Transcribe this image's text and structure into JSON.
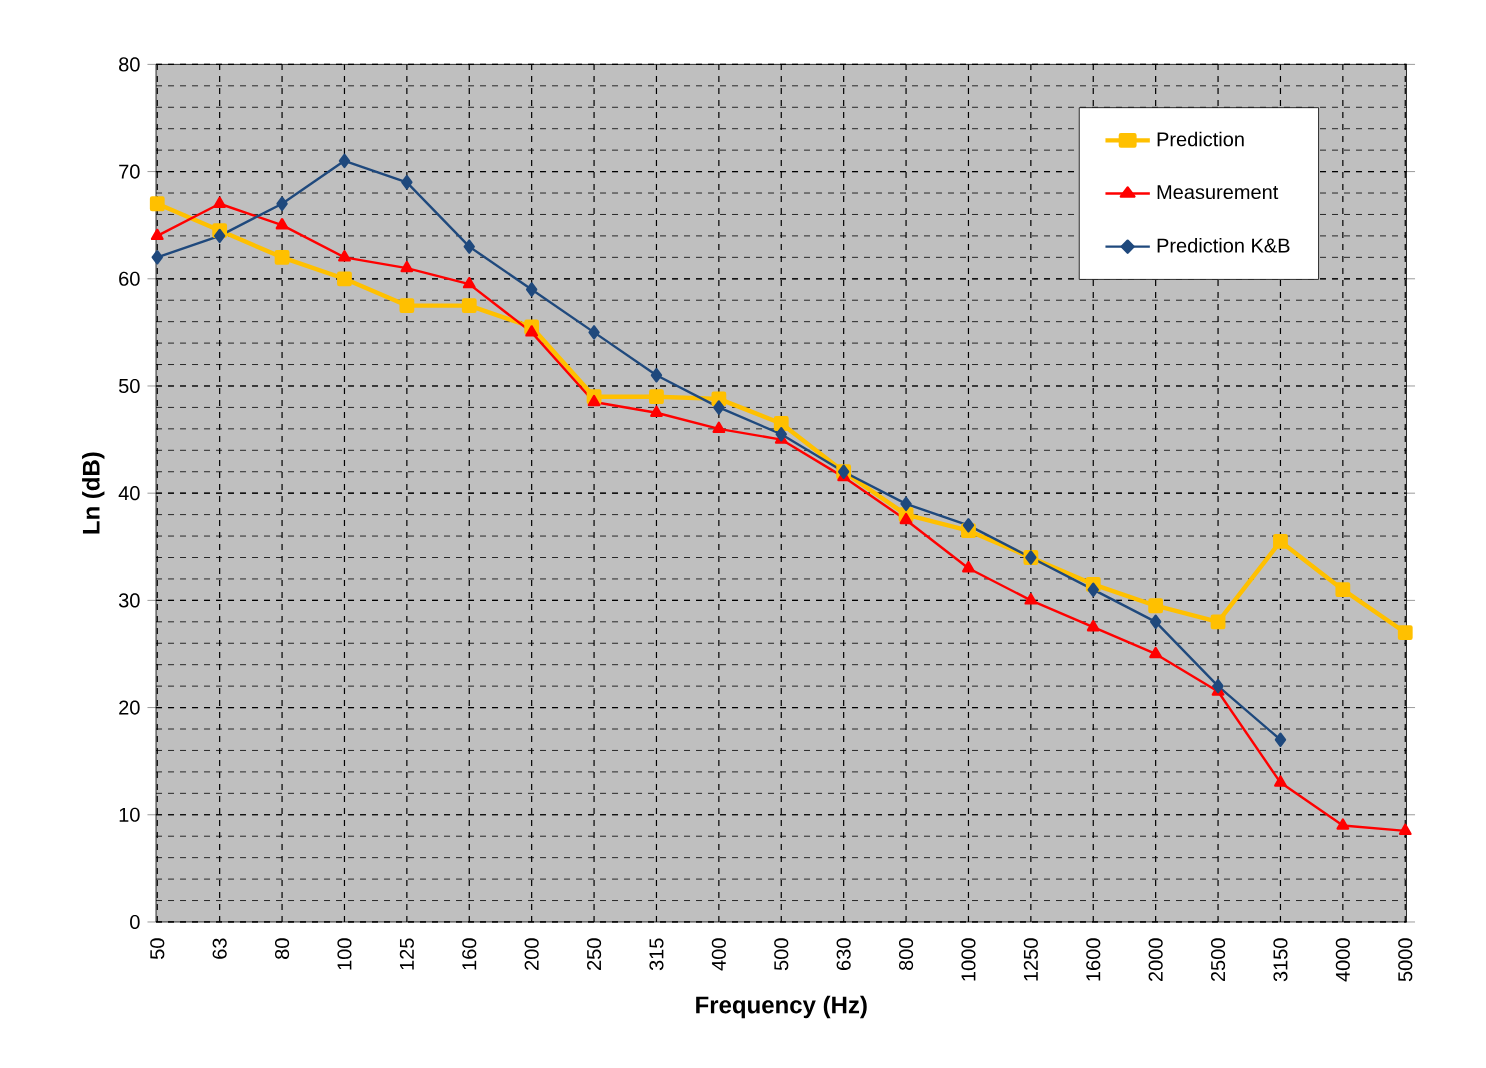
{
  "chart_data": {
    "type": "line",
    "xlabel": "Frequency (Hz)",
    "ylabel": "Ln (dB)",
    "categories": [
      "50",
      "63",
      "80",
      "100",
      "125",
      "160",
      "200",
      "250",
      "315",
      "400",
      "500",
      "630",
      "800",
      "1000",
      "1250",
      "1600",
      "2000",
      "2500",
      "3150",
      "4000",
      "5000"
    ],
    "series": [
      {
        "name": "Prediction",
        "color": "#ffc000",
        "marker": "square",
        "values": [
          67,
          64.5,
          62,
          60,
          57.5,
          57.5,
          55.5,
          49,
          49,
          48.8,
          46.5,
          42,
          38,
          36.5,
          34,
          31.5,
          29.5,
          28,
          35.5,
          31,
          27
        ]
      },
      {
        "name": "Measurement",
        "color": "#ff0000",
        "marker": "triangle",
        "values": [
          64,
          67,
          65,
          62,
          61,
          59.5,
          55,
          48.5,
          47.5,
          46,
          45,
          41.5,
          37.5,
          33,
          30,
          27.5,
          25,
          21.5,
          13,
          9,
          8.5
        ]
      },
      {
        "name": "Prediction K&B",
        "color": "#1f497d",
        "marker": "diamond",
        "values": [
          62,
          64,
          67,
          71,
          69,
          63,
          59,
          55,
          51,
          48,
          45.5,
          42,
          39,
          37,
          34,
          31,
          28,
          22,
          17,
          null,
          null
        ]
      }
    ],
    "ylim": [
      0,
      80
    ],
    "yticks": [
      0,
      10,
      20,
      30,
      40,
      50,
      60,
      70,
      80
    ],
    "grid": true,
    "legend": "top right"
  }
}
